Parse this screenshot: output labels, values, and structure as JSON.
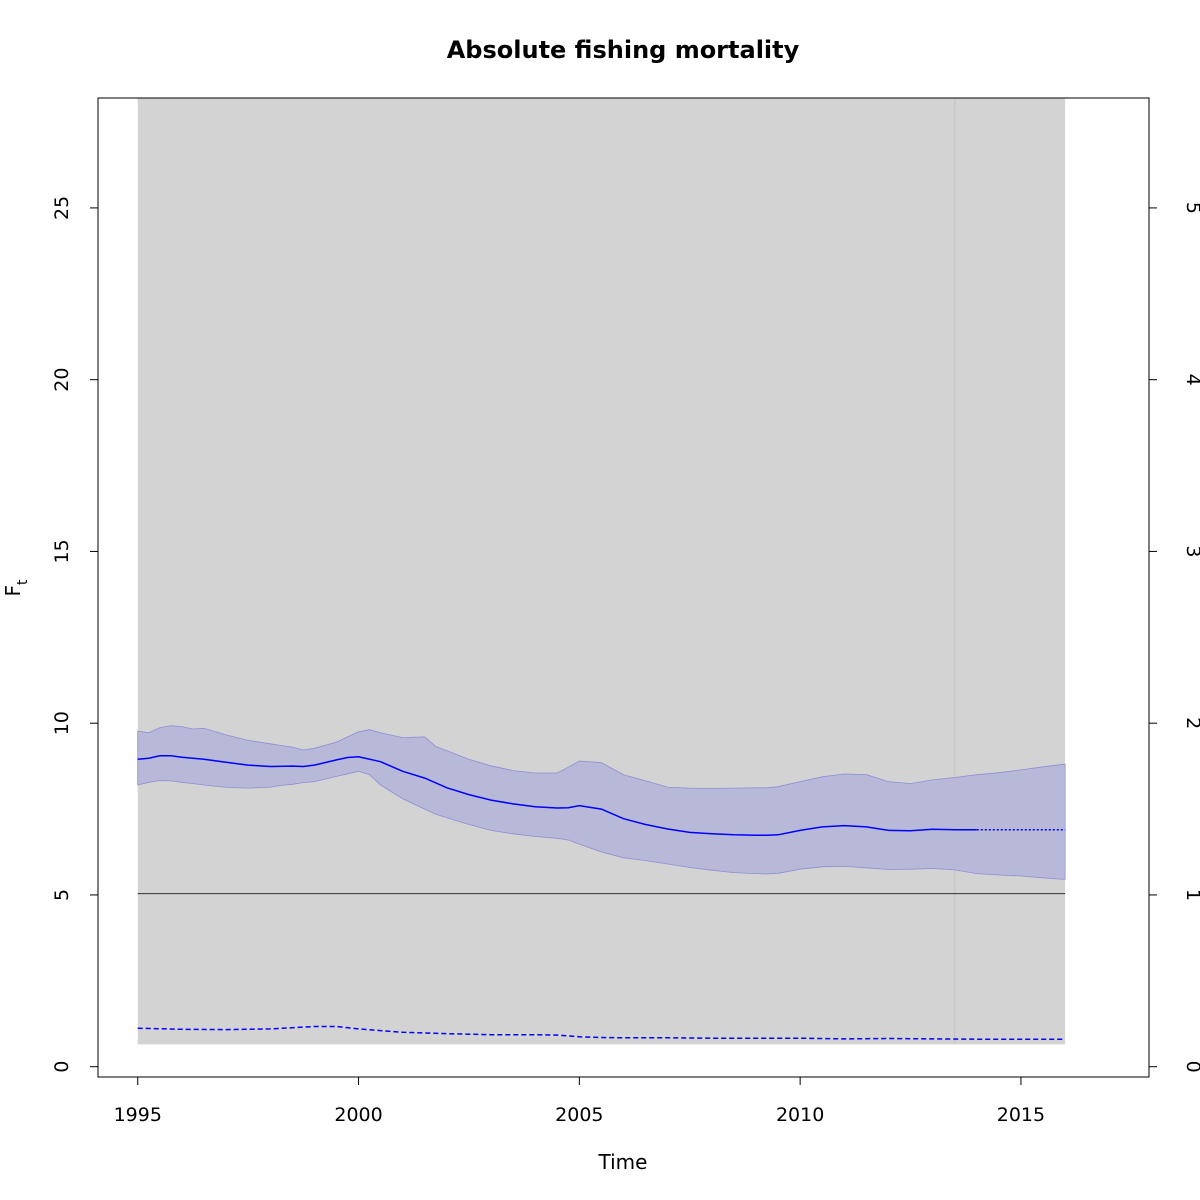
{
  "chart_data": {
    "type": "line",
    "title": "Absolute fishing mortality",
    "xlabel": "Time",
    "ylabel_main": "F",
    "ylabel_sub": "t",
    "xlim": [
      1994.1,
      2017.9
    ],
    "ylim": [
      -0.3,
      28.2
    ],
    "ylim_right": [
      -0.06,
      5.64
    ],
    "x_ticks": [
      1995,
      2000,
      2005,
      2010,
      2015
    ],
    "x_tick_labels": [
      "1995",
      "2000",
      "2005",
      "2010",
      "2015"
    ],
    "y_ticks": [
      0,
      5,
      10,
      15,
      20,
      25
    ],
    "y_tick_labels": [
      "0",
      "5",
      "10",
      "15",
      "20",
      "25"
    ],
    "y_right_ticks": [
      0,
      1,
      2,
      3,
      4,
      5
    ],
    "y_right_tick_labels": [
      "0",
      "1",
      "2",
      "3",
      "4",
      "5"
    ],
    "grey_region": {
      "x": [
        1995,
        2016
      ],
      "y": [
        0.65,
        28.2
      ],
      "color": "#d3d3d3"
    },
    "vertical_marker_x": 2013.5,
    "reference_line_y": 5.04,
    "colors": {
      "band": "#b8b8d8",
      "band_edge": "#8f8fd6",
      "series": "#0000ff",
      "reference": "#333333",
      "marker": "#c8c8c8"
    },
    "x": [
      1995,
      1995.5,
      2000,
      2001,
      2005,
      2006,
      2009,
      2011,
      2014,
      2016
    ],
    "series": [
      {
        "role": "estimate",
        "style": "solid",
        "x": [
          1995,
          1995.25,
          1995.5,
          1995.75,
          1996,
          1996.5,
          1997,
          1997.5,
          1998,
          1998.5,
          1998.75,
          1999,
          1999.5,
          1999.75,
          2000,
          2000.5,
          2001,
          2001.5,
          2002,
          2002.5,
          2003,
          2003.5,
          2004,
          2004.5,
          2004.75,
          2005,
          2005.5,
          2006,
          2006.5,
          2007,
          2007.5,
          2008,
          2008.5,
          2009,
          2009.25,
          2009.5,
          2010,
          2010.5,
          2011,
          2011.5,
          2012,
          2012.5,
          2013,
          2013.5,
          2014
        ],
        "y": [
          8.95,
          8.98,
          9.05,
          9.05,
          9.01,
          8.95,
          8.86,
          8.78,
          8.74,
          8.75,
          8.74,
          8.78,
          8.93,
          9.0,
          9.02,
          8.88,
          8.6,
          8.4,
          8.12,
          7.92,
          7.76,
          7.65,
          7.57,
          7.53,
          7.54,
          7.6,
          7.5,
          7.22,
          7.05,
          6.92,
          6.82,
          6.78,
          6.75,
          6.74,
          6.74,
          6.75,
          6.88,
          6.98,
          7.02,
          6.98,
          6.88,
          6.87,
          6.91,
          6.9,
          6.9
        ]
      },
      {
        "role": "projection",
        "style": "dotted",
        "x": [
          2014,
          2016
        ],
        "y": [
          6.9,
          6.9
        ]
      },
      {
        "role": "lower-panel",
        "style": "dashed",
        "x": [
          1995,
          1996,
          1997,
          1998,
          1999,
          1999.5,
          2000,
          2001,
          2002,
          2003,
          2004,
          2004.5,
          2005,
          2005.5,
          2006,
          2007,
          2008,
          2009,
          2010,
          2011,
          2012,
          2013,
          2014,
          2015,
          2016
        ],
        "y": [
          1.12,
          1.09,
          1.08,
          1.1,
          1.17,
          1.17,
          1.1,
          1.0,
          0.96,
          0.93,
          0.93,
          0.92,
          0.87,
          0.85,
          0.84,
          0.84,
          0.83,
          0.83,
          0.83,
          0.81,
          0.82,
          0.81,
          0.8,
          0.8,
          0.8
        ]
      }
    ],
    "band": {
      "x": [
        1995,
        1995.25,
        1995.5,
        1995.75,
        1996,
        1996.25,
        1996.5,
        1997,
        1997.5,
        1998,
        1998.25,
        1998.5,
        1998.75,
        1999,
        1999.5,
        2000,
        2000.25,
        2000.5,
        2001,
        2001.5,
        2001.75,
        2002,
        2002.5,
        2003,
        2003.5,
        2004,
        2004.5,
        2004.75,
        2005,
        2005.5,
        2006,
        2006.5,
        2007,
        2007.5,
        2008,
        2008.5,
        2009,
        2009.25,
        2009.5,
        2010,
        2010.5,
        2011,
        2011.5,
        2012,
        2012.5,
        2013,
        2013.5,
        2014,
        2014.5,
        2015,
        2015.5,
        2016
      ],
      "upper": [
        9.77,
        9.72,
        9.87,
        9.93,
        9.9,
        9.83,
        9.85,
        9.66,
        9.5,
        9.4,
        9.35,
        9.3,
        9.22,
        9.27,
        9.45,
        9.75,
        9.81,
        9.72,
        9.58,
        9.6,
        9.32,
        9.2,
        8.95,
        8.76,
        8.62,
        8.55,
        8.55,
        8.72,
        8.9,
        8.85,
        8.5,
        8.32,
        8.14,
        8.11,
        8.1,
        8.11,
        8.12,
        8.12,
        8.15,
        8.3,
        8.44,
        8.52,
        8.5,
        8.3,
        8.24,
        8.35,
        8.42,
        8.5,
        8.56,
        8.64,
        8.73,
        8.81
      ],
      "lower": [
        8.2,
        8.28,
        8.33,
        8.32,
        8.28,
        8.24,
        8.2,
        8.13,
        8.11,
        8.14,
        8.19,
        8.22,
        8.27,
        8.3,
        8.45,
        8.6,
        8.5,
        8.2,
        7.8,
        7.5,
        7.35,
        7.25,
        7.05,
        6.88,
        6.78,
        6.7,
        6.65,
        6.6,
        6.48,
        6.25,
        6.08,
        6.0,
        5.9,
        5.8,
        5.72,
        5.65,
        5.62,
        5.61,
        5.63,
        5.75,
        5.82,
        5.83,
        5.79,
        5.74,
        5.75,
        5.77,
        5.73,
        5.62,
        5.58,
        5.55,
        5.5,
        5.45
      ]
    }
  }
}
